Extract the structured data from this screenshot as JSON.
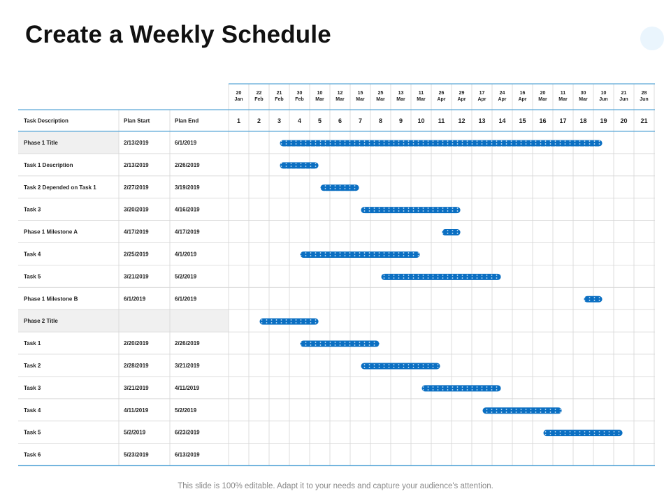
{
  "page": {
    "title": "Create a Weekly Schedule",
    "footer": "This slide is 100% editable. Adapt it to your needs and capture your audience's attention."
  },
  "colors": {
    "bar": "#0b6fc2",
    "bar_dots": "#cfe6f8",
    "grid": "#d6d6d6",
    "accent_line": "#5aa7d8",
    "title_row_fill": "#f0f0f0"
  },
  "chart_data": {
    "type": "table",
    "subtype": "gantt",
    "columns": [
      "Task Description",
      "Plan Start",
      "Plan End"
    ],
    "week_dates": [
      [
        "20",
        "Jan"
      ],
      [
        "22",
        "Feb"
      ],
      [
        "21",
        "Feb"
      ],
      [
        "30",
        "Feb"
      ],
      [
        "10",
        "Mar"
      ],
      [
        "12",
        "Mar"
      ],
      [
        "15",
        "Mar"
      ],
      [
        "25",
        "Mar"
      ],
      [
        "13",
        "Mar"
      ],
      [
        "11",
        "Mar"
      ],
      [
        "26",
        "Apr"
      ],
      [
        "29",
        "Apr"
      ],
      [
        "17",
        "Apr"
      ],
      [
        "24",
        "Apr"
      ],
      [
        "16",
        "Apr"
      ],
      [
        "20",
        "Mar"
      ],
      [
        "11",
        "Mar"
      ],
      [
        "30",
        "Mar"
      ],
      [
        "10",
        "Jun"
      ],
      [
        "21",
        "Jun"
      ],
      [
        "28",
        "Jun"
      ]
    ],
    "weeks": [
      1,
      2,
      3,
      4,
      5,
      6,
      7,
      8,
      9,
      10,
      11,
      12,
      13,
      14,
      15,
      16,
      17,
      18,
      19,
      20,
      21
    ],
    "rows": [
      {
        "task": "Phase 1 Title",
        "start": "2/13/2019",
        "end": "6/1/2019",
        "kind": "phase",
        "bar_from_week": 3,
        "bar_to_week": 18.9
      },
      {
        "task": "Task 1 Description",
        "start": "2/13/2019",
        "end": "2/26/2019",
        "kind": "task",
        "bar_from_week": 3,
        "bar_to_week": 4.9
      },
      {
        "task": "Task 2 Depended on Task 1",
        "start": "2/27/2019",
        "end": "3/19/2019",
        "kind": "task",
        "bar_from_week": 5,
        "bar_to_week": 6.9
      },
      {
        "task": "Task 3",
        "start": "3/20/2019",
        "end": "4/16/2019",
        "kind": "task",
        "bar_from_week": 7,
        "bar_to_week": 11.9
      },
      {
        "task": "Phase 1 Milestone A",
        "start": "4/17/2019",
        "end": "4/17/2019",
        "kind": "milestone",
        "bar_from_week": 11,
        "bar_to_week": 11.9
      },
      {
        "task": "Task 4",
        "start": "2/25/2019",
        "end": "4/1/2019",
        "kind": "task",
        "bar_from_week": 4,
        "bar_to_week": 9.9
      },
      {
        "task": "Task 5",
        "start": "3/21/2019",
        "end": "5/2/2019",
        "kind": "task",
        "bar_from_week": 8,
        "bar_to_week": 13.9
      },
      {
        "task": "Phase 1 Milestone B",
        "start": "6/1/2019",
        "end": "6/1/2019",
        "kind": "milestone",
        "bar_from_week": 18,
        "bar_to_week": 18.9
      },
      {
        "task": "Phase 2 Title",
        "start": "",
        "end": "",
        "kind": "phase",
        "bar_from_week": 2,
        "bar_to_week": 4.9
      },
      {
        "task": "Task 1",
        "start": "2/20/2019",
        "end": "2/26/2019",
        "kind": "task",
        "bar_from_week": 4,
        "bar_to_week": 7.9
      },
      {
        "task": "Task 2",
        "start": "2/28/2019",
        "end": "3/21/2019",
        "kind": "task",
        "bar_from_week": 7,
        "bar_to_week": 10.9
      },
      {
        "task": "Task 3",
        "start": "3/21/2019",
        "end": "4/11/2019",
        "kind": "task",
        "bar_from_week": 10,
        "bar_to_week": 13.9
      },
      {
        "task": "Task 4",
        "start": "4/11/2019",
        "end": "5/2/2019",
        "kind": "task",
        "bar_from_week": 13,
        "bar_to_week": 16.9
      },
      {
        "task": "Task 5",
        "start": "5/2/2019",
        "end": "6/23/2019",
        "kind": "task",
        "bar_from_week": 16,
        "bar_to_week": 19.9
      },
      {
        "task": "Task 6",
        "start": "5/23/2019",
        "end": "6/13/2019",
        "kind": "task",
        "bar_from_week": null,
        "bar_to_week": null
      }
    ]
  }
}
